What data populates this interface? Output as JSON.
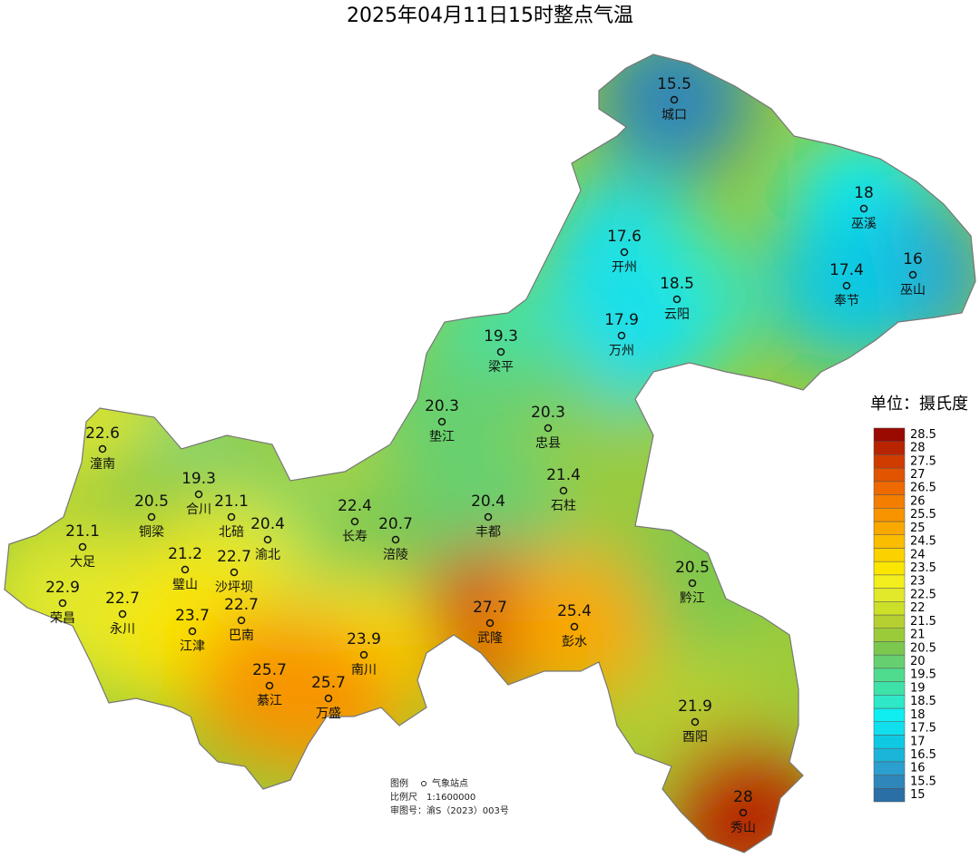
{
  "title": "2025年04月11日15时整点气温",
  "stations": [
    {
      "name": "城口",
      "value": 15.5
    },
    {
      "name": "巫溪",
      "value": 18
    },
    {
      "name": "巫山",
      "value": 16
    },
    {
      "name": "开州",
      "value": 17.6
    },
    {
      "name": "奉节",
      "value": 17.4
    },
    {
      "name": "云阳",
      "value": 18.5
    },
    {
      "name": "万州",
      "value": 17.9
    },
    {
      "name": "梁平",
      "value": 19.3
    },
    {
      "name": "垫江",
      "value": 20.3
    },
    {
      "name": "忠县",
      "value": 20.3
    },
    {
      "name": "潼南",
      "value": 22.6
    },
    {
      "name": "合川",
      "value": 19.3
    },
    {
      "name": "石柱",
      "value": 21.4
    },
    {
      "name": "铜梁",
      "value": 20.5
    },
    {
      "name": "北碚",
      "value": 21.1
    },
    {
      "name": "长寿",
      "value": 22.4
    },
    {
      "name": "渝北",
      "value": 20.4
    },
    {
      "name": "涪陵",
      "value": 20.7
    },
    {
      "name": "丰都",
      "value": 20.4
    },
    {
      "name": "大足",
      "value": 21.1
    },
    {
      "name": "璧山",
      "value": 21.2
    },
    {
      "name": "沙坪坝",
      "value": 22.7
    },
    {
      "name": "黔江",
      "value": 20.5
    },
    {
      "name": "荣昌",
      "value": 22.9
    },
    {
      "name": "永川",
      "value": 22.7
    },
    {
      "name": "巴南",
      "value": 22.7
    },
    {
      "name": "武隆",
      "value": 27.7
    },
    {
      "name": "彭水",
      "value": 25.4
    },
    {
      "name": "江津",
      "value": 23.7
    },
    {
      "name": "南川",
      "value": 23.9
    },
    {
      "name": "綦江",
      "value": 25.7
    },
    {
      "name": "万盛",
      "value": 25.7
    },
    {
      "name": "酉阳",
      "value": 21.9
    },
    {
      "name": "秀山",
      "value": 28
    }
  ],
  "legend": {
    "title": "单位：摄氏度",
    "levels": [
      15,
      15.5,
      16,
      16.5,
      17,
      17.5,
      18,
      18.5,
      19,
      19.5,
      20,
      20.5,
      21,
      21.5,
      22,
      22.5,
      23,
      23.5,
      24,
      24.5,
      25,
      25.5,
      26,
      26.5,
      27,
      27.5,
      28,
      28.5
    ],
    "colors": [
      "#2a6fa5",
      "#2f86b8",
      "#2b9fcf",
      "#1cb5da",
      "#0fc9e3",
      "#12dfee",
      "#10eef2",
      "#2ee8c8",
      "#3ee2a8",
      "#4fdc8e",
      "#66d070",
      "#7cc84f",
      "#9ccb3a",
      "#b5d030",
      "#cce02a",
      "#e2e82a",
      "#f3ef1e",
      "#fae600",
      "#fbd200",
      "#fbbd00",
      "#f9a800",
      "#f79400",
      "#f37e00",
      "#ee6a00",
      "#e15400",
      "#cf3c00",
      "#b82400",
      "#9a0a00"
    ]
  },
  "notes": {
    "legend_label": "图例",
    "station_label": "气象站点",
    "scale_label": "比例尺",
    "scale": "1:1600000",
    "approval": "审图号：渝S（2023）003号"
  }
}
